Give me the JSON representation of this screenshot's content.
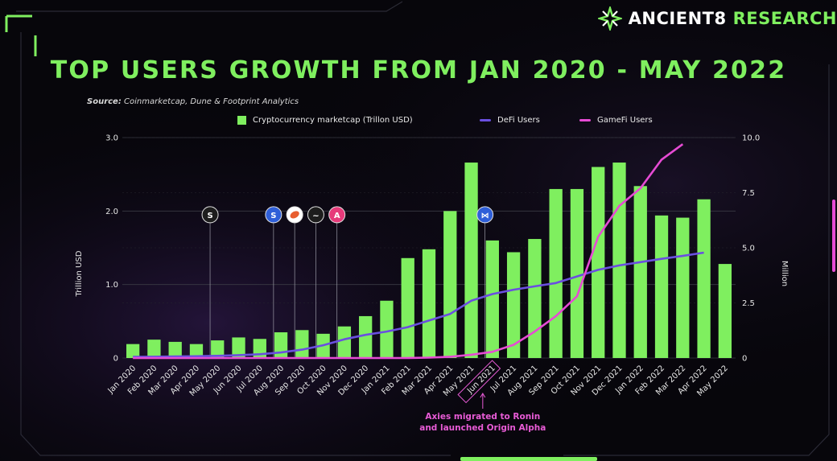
{
  "brand": {
    "name": "ANCIENT8",
    "suffix": "RESEARCH"
  },
  "title": "TOP USERS GROWTH FROM JAN 2020 - MAY 2022",
  "source": {
    "label": "Source:",
    "text": "Coinmarketcap, Dune & Footprint Analytics"
  },
  "colors": {
    "bar": "#7fef5f",
    "defi": "#6a4fe0",
    "gamefi": "#e64bd4",
    "title": "#7fef5f",
    "annotation": "#e85bd6"
  },
  "chart_data": {
    "type": "bar",
    "categories": [
      "Jan 2020",
      "Feb 2020",
      "Mar 2020",
      "Apr 2020",
      "May 2020",
      "Jun 2020",
      "Jul 2020",
      "Aug 2020",
      "Sep 2020",
      "Oct 2020",
      "Nov 2020",
      "Dec 2020",
      "Jan 2021",
      "Feb 2021",
      "Mar 2021",
      "Apr 2021",
      "May 2021",
      "Jun 2021",
      "Jul 2021",
      "Aug 2021",
      "Sep 2021",
      "Oct 2021",
      "Nov 2021",
      "Dec 2021",
      "Jan 2022",
      "Feb 2022",
      "Mar 2022",
      "Apr 2022",
      "May 2022"
    ],
    "series": [
      {
        "name": "Cryptocurrency marketcap (Trillon USD)",
        "type": "bar",
        "axis": "left",
        "values": [
          0.19,
          0.25,
          0.22,
          0.19,
          0.24,
          0.28,
          0.26,
          0.35,
          0.38,
          0.33,
          0.43,
          0.57,
          0.78,
          1.36,
          1.48,
          2.0,
          2.66,
          1.6,
          1.44,
          1.62,
          2.3,
          2.3,
          2.6,
          2.66,
          2.34,
          1.94,
          1.91,
          2.16,
          1.28
        ]
      },
      {
        "name": "DeFi Users",
        "type": "line",
        "axis": "right",
        "values": [
          0.05,
          0.06,
          0.07,
          0.08,
          0.1,
          0.13,
          0.17,
          0.25,
          0.38,
          0.58,
          0.85,
          1.05,
          1.2,
          1.4,
          1.7,
          2.0,
          2.6,
          2.9,
          3.1,
          3.25,
          3.4,
          3.7,
          4.0,
          4.2,
          4.35,
          4.5,
          4.63,
          4.78,
          null
        ]
      },
      {
        "name": "GameFi Users",
        "type": "line",
        "axis": "right",
        "values": [
          0,
          0,
          0,
          0,
          0,
          0,
          0,
          0,
          0,
          0,
          0,
          0,
          0,
          0,
          0.02,
          0.06,
          0.15,
          0.28,
          0.6,
          1.2,
          1.9,
          2.8,
          5.5,
          6.9,
          7.7,
          9.0,
          9.7,
          null,
          null
        ]
      }
    ],
    "ylabel": "Trillion USD",
    "y2label": "Million",
    "ylim": [
      0,
      3.0
    ],
    "y2lim": [
      0,
      10.0
    ],
    "yticks": [
      "0",
      "1.0",
      "2.0",
      "3.0"
    ],
    "y2ticks": [
      "0",
      "2.5",
      "5.0",
      "7.5",
      "10.0"
    ],
    "legend_position": "top",
    "grid": true,
    "highlight": {
      "category": "Jun 2021",
      "text_line1": "Axies migrated to Ronin",
      "text_line2": "and launched Origin Alpha"
    },
    "markers": [
      {
        "category": "May 2020",
        "level": 1.95,
        "fill": "#1d1d1d",
        "glyph": "S"
      },
      {
        "category": "Aug 2020",
        "level": 1.95,
        "fill": "#2f5fd8",
        "glyph": "S"
      },
      {
        "category": "Sep 2020",
        "level": 1.95,
        "fill": "#ffffff",
        "glyph": ""
      },
      {
        "category": "Oct 2020",
        "level": 1.95,
        "fill": "#1d1d1d",
        "glyph": "~"
      },
      {
        "category": "Nov 2020",
        "level": 1.95,
        "fill": "#e63a7a",
        "glyph": "A"
      },
      {
        "category": "Jun 2021",
        "level": 1.95,
        "fill": "#2f5fd8",
        "glyph": "⋈"
      }
    ]
  }
}
